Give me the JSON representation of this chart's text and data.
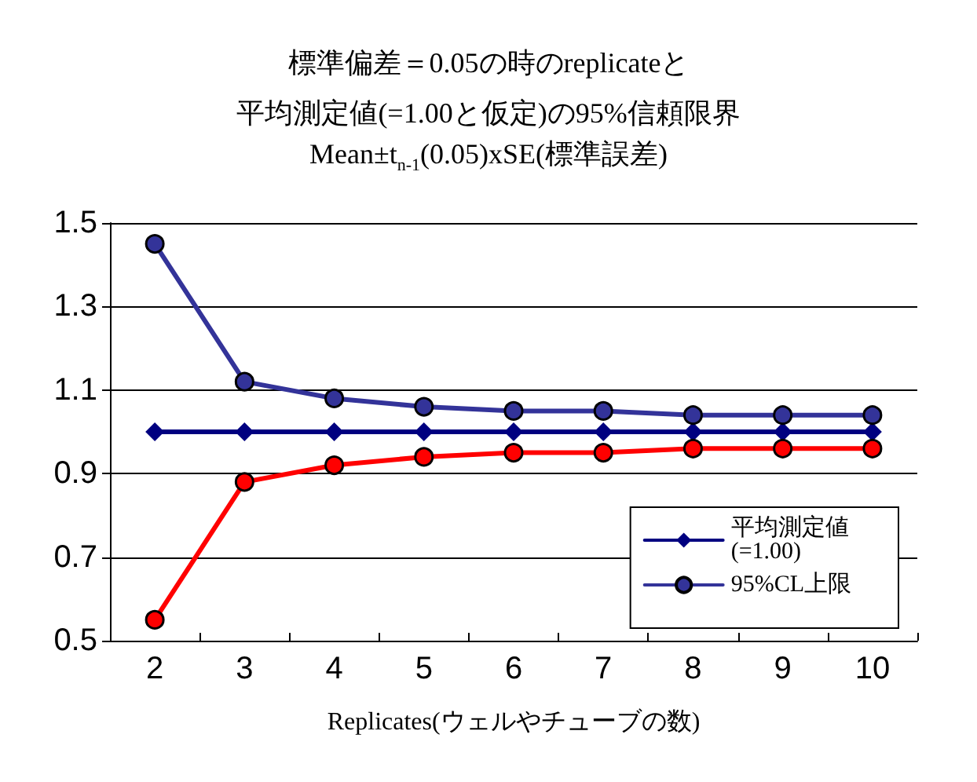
{
  "chart_data": {
    "type": "line",
    "title": "標準偏差＝0.05の時のreplicateと",
    "subtitle": "平均測定値(=1.00と仮定)の95%信頼限界\nMean±t$_{n-1}$(0.05)xSE(標準誤差)",
    "xlabel": "Replicates(ウェルやチューブの数)",
    "categories": [
      "2",
      "3",
      "4",
      "5",
      "6",
      "7",
      "8",
      "9",
      "10"
    ],
    "series": [
      {
        "name": "平均測定値\n(=1.00)",
        "color": "#000080",
        "marker": "diamond",
        "values": [
          1.0,
          1.0,
          1.0,
          1.0,
          1.0,
          1.0,
          1.0,
          1.0,
          1.0
        ]
      },
      {
        "name": "95%CL上限",
        "color": "#333399",
        "marker": "circle",
        "values": [
          1.45,
          1.12,
          1.08,
          1.06,
          1.05,
          1.05,
          1.04,
          1.04,
          1.04
        ]
      },
      {
        "color": "#ff0000",
        "marker": "circle",
        "values": [
          0.55,
          0.88,
          0.92,
          0.94,
          0.95,
          0.95,
          0.96,
          0.96,
          0.96
        ]
      }
    ],
    "ylim": [
      0.5,
      1.5
    ],
    "yticks": [
      0.5,
      0.7,
      0.9,
      1.1,
      1.3,
      1.5
    ],
    "grid": "y",
    "legend": "bottom right",
    "line_style": "solid"
  }
}
